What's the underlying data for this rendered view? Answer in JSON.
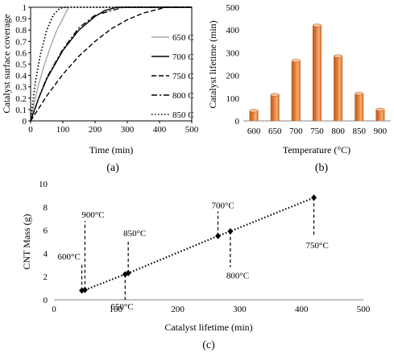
{
  "chart_data": [
    {
      "type": "line",
      "panel_label": "(a)",
      "xlabel": "Time (min)",
      "ylabel": "Catalyst surface coverage",
      "xlim": [
        0,
        500
      ],
      "ylim": [
        0,
        1
      ],
      "xticks": [
        0,
        100,
        200,
        300,
        400,
        500
      ],
      "yticks": [
        0,
        0.1,
        0.2,
        0.3,
        0.4,
        0.5,
        0.6,
        0.7,
        0.8,
        0.9,
        1
      ],
      "grid": false,
      "legend_position": "right",
      "series": [
        {
          "name": "650 C",
          "style": "solid",
          "color": "#a6a6a6",
          "x": [
            0,
            20,
            40,
            60,
            80,
            100,
            118,
            500
          ],
          "y": [
            0,
            0.27,
            0.47,
            0.64,
            0.79,
            0.9,
            1.0,
            1.0
          ]
        },
        {
          "name": "700 C",
          "style": "solid",
          "color": "#000000",
          "x": [
            0,
            25,
            50,
            100,
            150,
            200,
            230,
            268,
            500
          ],
          "y": [
            0,
            0.2,
            0.37,
            0.62,
            0.8,
            0.92,
            0.97,
            1.0,
            1.0
          ]
        },
        {
          "name": "750 C",
          "style": "dashed",
          "color": "#000000",
          "x": [
            0,
            50,
            100,
            150,
            200,
            250,
            300,
            350,
            420,
            500
          ],
          "y": [
            0,
            0.22,
            0.41,
            0.57,
            0.7,
            0.81,
            0.89,
            0.95,
            1.0,
            1.0
          ]
        },
        {
          "name": "800 C",
          "style": "dashdot",
          "color": "#000000",
          "x": [
            0,
            25,
            50,
            100,
            150,
            200,
            288,
            500
          ],
          "y": [
            0,
            0.2,
            0.38,
            0.63,
            0.82,
            0.93,
            1.0,
            1.0
          ]
        },
        {
          "name": "850 C",
          "style": "dotted",
          "color": "#000000",
          "x": [
            0,
            15,
            30,
            50,
            70,
            90,
            108,
            500
          ],
          "y": [
            0,
            0.35,
            0.58,
            0.8,
            0.93,
            0.99,
            1.0,
            1.0
          ]
        }
      ]
    },
    {
      "type": "bar",
      "panel_label": "(b)",
      "xlabel": "Temperature (°C)",
      "ylabel": "Catalyst lifetime (min)",
      "categories": [
        "600",
        "650",
        "700",
        "750",
        "800",
        "850",
        "900"
      ],
      "values": [
        45,
        115,
        265,
        420,
        285,
        120,
        50
      ],
      "ylim": [
        0,
        500
      ],
      "yticks": [
        0,
        100,
        200,
        300,
        400,
        500
      ],
      "bar_color": "#e8823a",
      "grid": false
    },
    {
      "type": "scatter",
      "panel_label": "(c)",
      "xlabel": "Catalyst lifetime (min)",
      "ylabel": "CNT Mass (g)",
      "xlim": [
        0,
        500
      ],
      "ylim": [
        0,
        10
      ],
      "xticks": [
        0,
        100,
        200,
        300,
        400,
        500
      ],
      "yticks": [
        0,
        2,
        4,
        6,
        8,
        10
      ],
      "grid": false,
      "trendline": "dotted",
      "points": [
        {
          "label": "600°C",
          "x": 45,
          "y": 0.8
        },
        {
          "label": "900°C",
          "x": 50,
          "y": 0.85
        },
        {
          "label": "650°C",
          "x": 115,
          "y": 2.2
        },
        {
          "label": "850°C",
          "x": 120,
          "y": 2.3
        },
        {
          "label": "700°C",
          "x": 265,
          "y": 5.5
        },
        {
          "label": "800°C",
          "x": 285,
          "y": 5.9
        },
        {
          "label": "750°C",
          "x": 420,
          "y": 8.8
        }
      ]
    }
  ]
}
